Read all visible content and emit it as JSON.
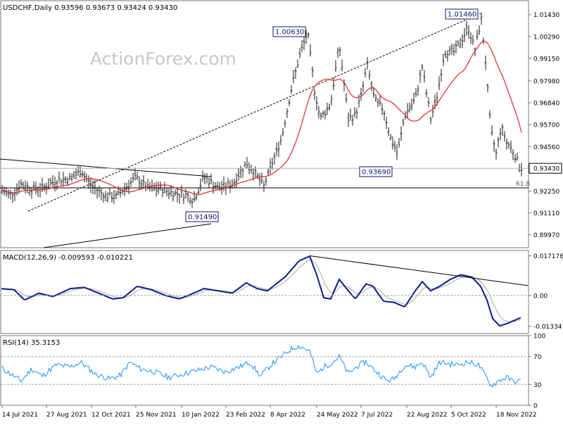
{
  "chart_data": [
    {
      "type": "candlestick",
      "panel": "price",
      "header": "USDCHF,Daily  0.93596 0.93673 0.93424 0.93430",
      "watermark": "ActionForex.com",
      "ylim": [
        0.893,
        1.0215
      ],
      "yticks": [
        "1.01430",
        "1.00290",
        "0.99150",
        "0.97980",
        "0.96840",
        "0.95700",
        "0.94560",
        "0.93430",
        "0.92250",
        "0.91110",
        "0.89970"
      ],
      "last_price_label": "0.93430",
      "fib_label": "61.8",
      "annotations": [
        "1.00630",
        "1.01460",
        "0.93690",
        "0.91490"
      ],
      "moving_average_color": "#e3242b",
      "colors": {
        "bar": "#1a1a1a",
        "ma": "#e3242b",
        "label_border": "#14146e",
        "label_bg": "#ffffff"
      }
    },
    {
      "type": "line",
      "panel": "macd",
      "header": "MACD(12,26,9) -0.009593 -0.010221",
      "yticks": [
        "0.017176",
        "0.00",
        "-0.01334"
      ],
      "ylim": [
        -0.0165,
        0.0195
      ],
      "colors": {
        "macd": "#0f1a8c",
        "signal": "#a8a8a8"
      }
    },
    {
      "type": "line",
      "panel": "rsi",
      "header": "RSI(14) 35.3153",
      "yticks": [
        "100",
        "70",
        "30",
        "0"
      ],
      "ylim": [
        0,
        100
      ],
      "colors": {
        "rsi": "#1e90ff",
        "levels": "#a0a0a0"
      }
    }
  ],
  "x_axis": {
    "labels": [
      "14 Jul 2021",
      "27 Aug 2021",
      "12 Oct 2021",
      "25 Nov 2021",
      "10 Jan 2022",
      "23 Feb 2022",
      "8 Apr 2022",
      "24 May 2022",
      "7 Jul 2022",
      "22 Aug 2022",
      "5 Oct 2022",
      "18 Nov 2022"
    ]
  }
}
